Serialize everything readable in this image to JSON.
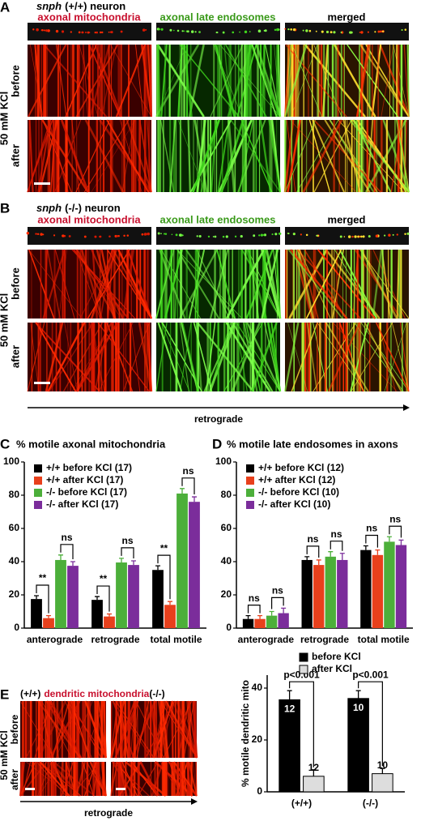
{
  "panel_A": {
    "letter": "A",
    "gene": "snph",
    "genotype": "(+/+) neuron",
    "col1": "axonal mitochondria",
    "col2": "axonal late endosomes",
    "col3": "merged",
    "row1": "before",
    "row2": "after",
    "condition": "50 mM KCl"
  },
  "panel_B": {
    "letter": "B",
    "gene": "snph",
    "genotype": "(-/-) neuron",
    "col1": "axonal mitochondria",
    "col2": "axonal late endosomes",
    "col3": "merged",
    "row1": "before",
    "row2": "after",
    "condition": "50 mM KCl",
    "direction": "retrograde"
  },
  "panel_E": {
    "letter": "E",
    "left": "(+/+)",
    "title": "dendritic mitochondria",
    "right": "(-/-)",
    "row1": "before",
    "row2": "after",
    "condition": "50 mM KCl",
    "direction": "retrograde"
  },
  "chart_data": [
    {
      "type": "bar",
      "letter": "C",
      "title": "% motile axonal mitochondria",
      "categories": [
        "anterograde",
        "retrograde",
        "total motile"
      ],
      "series": [
        {
          "name": "+/+ before KCl (17)",
          "color": "#000000",
          "values": [
            17.5,
            17,
            35
          ],
          "errors": [
            2,
            2,
            2.5
          ]
        },
        {
          "name": "+/+ after KCl (17)",
          "color": "#e8401c",
          "values": [
            6,
            7,
            14
          ],
          "errors": [
            1.5,
            1.5,
            2
          ]
        },
        {
          "name": "-/- before KCl (17)",
          "color": "#4caf3a",
          "values": [
            41,
            39.5,
            81
          ],
          "errors": [
            3,
            2.5,
            3
          ]
        },
        {
          "name": "-/- after KCl (17)",
          "color": "#7b2d9b",
          "values": [
            37.5,
            38,
            76
          ],
          "errors": [
            2.5,
            2.5,
            3
          ]
        }
      ],
      "annotations": [
        [
          "**",
          "ns"
        ],
        [
          "**",
          "ns"
        ],
        [
          "**",
          "ns"
        ]
      ],
      "ylim": [
        0,
        100
      ],
      "yticks": [
        0,
        20,
        40,
        60,
        80,
        100
      ],
      "legend": "upper left"
    },
    {
      "type": "bar",
      "letter": "D",
      "title": "% motile late endosomes in axons",
      "categories": [
        "anterograde",
        "retrograde",
        "total motile"
      ],
      "series": [
        {
          "name": "+/+ before KCl (12)",
          "color": "#000000",
          "values": [
            5.5,
            41,
            47
          ],
          "errors": [
            2,
            2,
            2.5
          ]
        },
        {
          "name": "+/+ after KCl (12)",
          "color": "#e8401c",
          "values": [
            5.5,
            38,
            44
          ],
          "errors": [
            2,
            3,
            3
          ]
        },
        {
          "name": "-/- before KCl (10)",
          "color": "#4caf3a",
          "values": [
            7.5,
            43,
            52
          ],
          "errors": [
            2.5,
            3,
            3
          ]
        },
        {
          "name": "-/- after KCl (10)",
          "color": "#7b2d9b",
          "values": [
            9,
            41,
            50
          ],
          "errors": [
            3,
            4,
            3
          ]
        }
      ],
      "annotations": [
        [
          "ns",
          "ns"
        ],
        [
          "ns",
          "ns"
        ],
        [
          "ns",
          "ns"
        ]
      ],
      "ylim": [
        0,
        100
      ],
      "yticks": [
        0,
        20,
        40,
        60,
        80,
        100
      ],
      "legend": "upper left"
    },
    {
      "type": "bar",
      "letter": "E",
      "ylabel": "% motile dendritic mito",
      "categories": [
        "(+/+)",
        "(-/-)"
      ],
      "series": [
        {
          "name": "before KCl",
          "color": "#000000",
          "values": [
            35.5,
            36
          ],
          "errors": [
            3.5,
            3
          ],
          "n_labels": [
            "12",
            "10"
          ]
        },
        {
          "name": "after KCl",
          "color": "#dddddd",
          "values": [
            6,
            7
          ],
          "errors": [
            2.5,
            2
          ],
          "n_labels": [
            "12",
            "10"
          ]
        }
      ],
      "annotations": [
        "p<0.001",
        "p<0.001"
      ],
      "ylim": [
        0,
        45
      ],
      "yticks": [
        0,
        20,
        40
      ],
      "legend": "top"
    }
  ]
}
